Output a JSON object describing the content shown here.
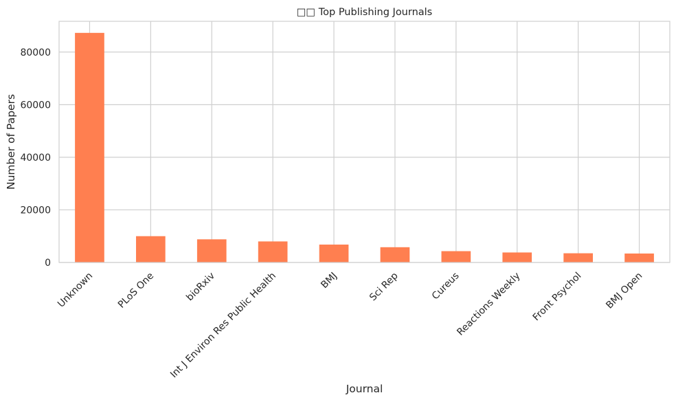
{
  "chart_data": {
    "type": "bar",
    "title": "□□ Top Publishing Journals",
    "xlabel": "Journal",
    "ylabel": "Number of Papers",
    "categories": [
      "Unknown",
      "PLoS One",
      "bioRxiv",
      "Int J Environ Res Public Health",
      "BMJ",
      "Sci Rep",
      "Cureus",
      "Reactions Weekly",
      "Front Psychol",
      "BMJ Open"
    ],
    "values": [
      87300,
      10000,
      8800,
      8000,
      6800,
      5800,
      4300,
      3800,
      3500,
      3400
    ],
    "yticks": [
      0,
      20000,
      40000,
      60000,
      80000
    ],
    "ylim": [
      0,
      91700
    ],
    "grid": true,
    "legend": "none",
    "colors": {
      "bar": "#ff7f50",
      "grid": "#cfcfcf",
      "text": "#262626"
    }
  }
}
